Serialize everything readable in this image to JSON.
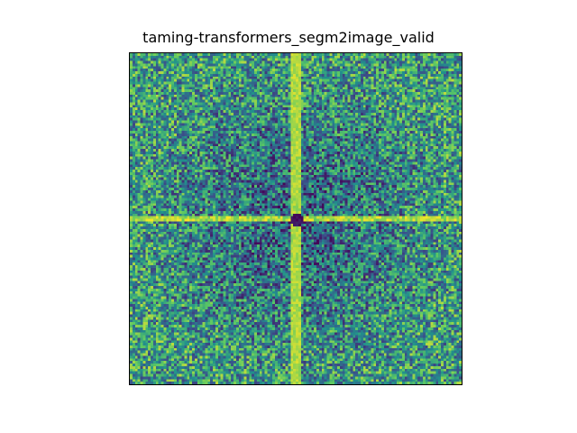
{
  "chart_data": {
    "type": "heatmap",
    "title": "taming-transformers_segm2image_valid",
    "xlabel": "",
    "ylabel": "",
    "axes_visible": false,
    "grid": false,
    "colormap": "viridis",
    "colormap_stops": [
      "#440154",
      "#3b528b",
      "#21918c",
      "#5ec962",
      "#fde725"
    ],
    "grid_size": 128,
    "value_range": [
      0,
      1
    ],
    "description_of_pattern": {
      "center_value": 0.0,
      "cross_lines_value": 0.95,
      "near_center_ring_value": 0.35,
      "corner_value": 0.55,
      "noise_amplitude": 0.35
    }
  }
}
